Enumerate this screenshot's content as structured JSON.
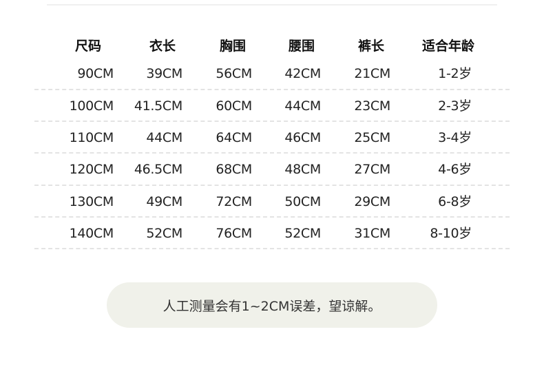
{
  "table": {
    "headers": [
      "尺码",
      "衣长",
      "胸围",
      "腰围",
      "裤长",
      "适合年龄"
    ],
    "rows": [
      [
        "90CM",
        "39CM",
        "56CM",
        "42CM",
        "21CM",
        "1-2岁"
      ],
      [
        "100CM",
        "41.5CM",
        "60CM",
        "44CM",
        "23CM",
        "2-3岁"
      ],
      [
        "110CM",
        "44CM",
        "64CM",
        "46CM",
        "25CM",
        "3-4岁"
      ],
      [
        "120CM",
        "46.5CM",
        "68CM",
        "48CM",
        "27CM",
        "4-6岁"
      ],
      [
        "130CM",
        "49CM",
        "72CM",
        "50CM",
        "29CM",
        "6-8岁"
      ],
      [
        "140CM",
        "52CM",
        "76CM",
        "52CM",
        "31CM",
        "8-10岁"
      ]
    ]
  },
  "note": "人工测量会有1~2CM误差，望谅解。",
  "colors": {
    "note_background": "#f0f1ea",
    "divider": "#e3e3e3"
  }
}
